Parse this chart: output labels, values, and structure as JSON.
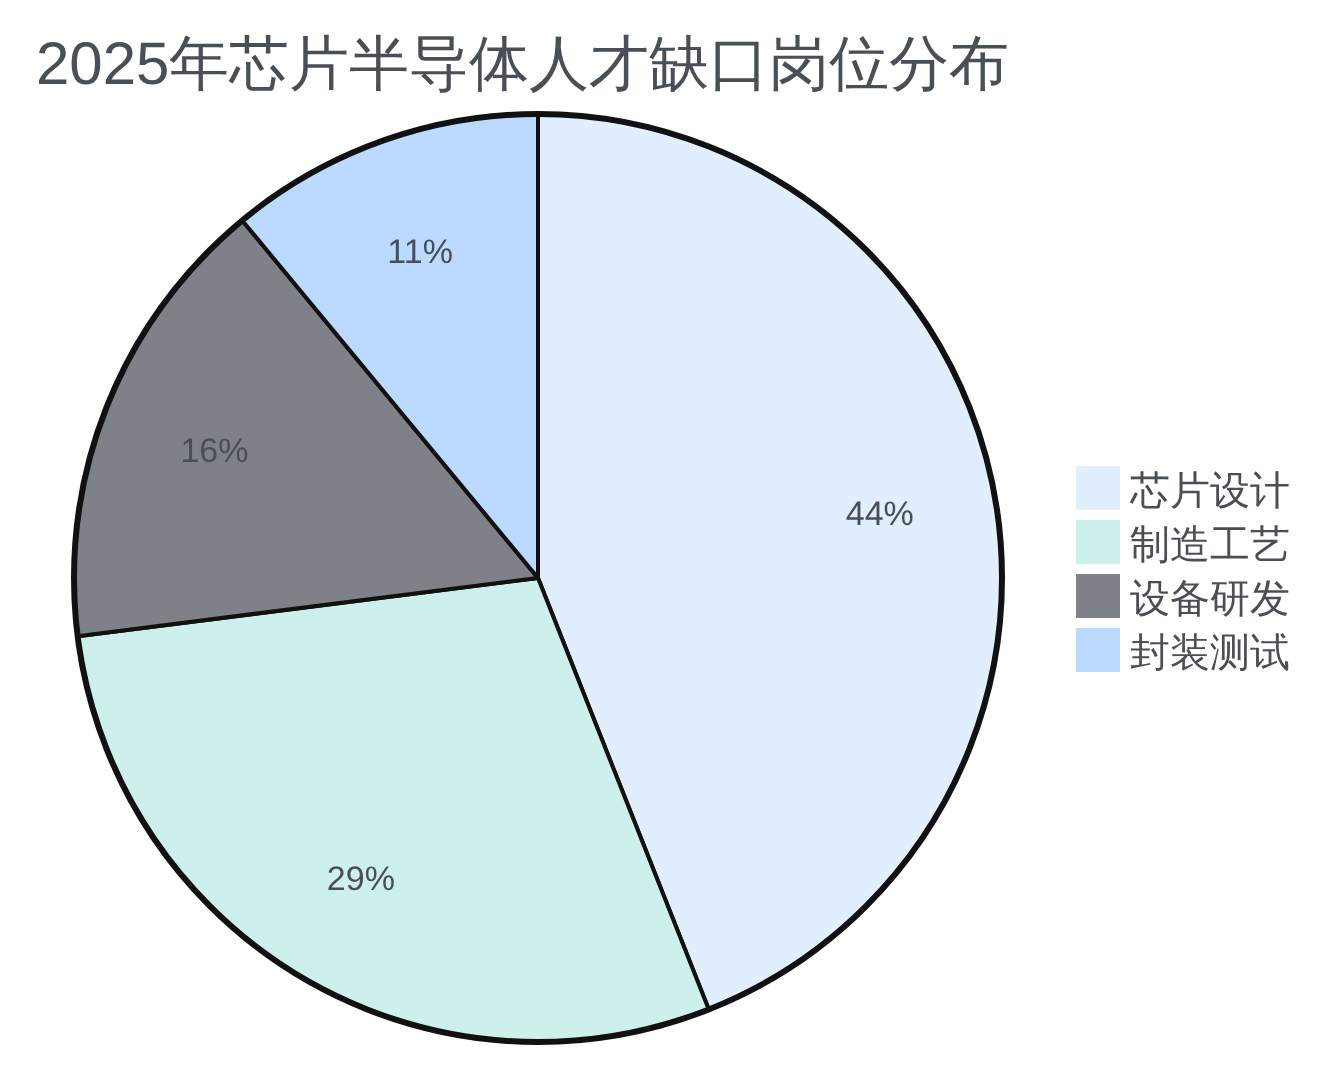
{
  "chart_data": {
    "type": "pie",
    "title": "2025年芯片半导体人才缺口岗位分布",
    "categories": [
      "芯片设计",
      "制造工艺",
      "设备研发",
      "封装测试"
    ],
    "values": [
      44,
      29,
      16,
      11
    ],
    "value_labels": [
      "44%",
      "29%",
      "16%",
      "11%"
    ],
    "colors": [
      "#e0eefe",
      "#cdf0ec",
      "#7e8288",
      "#bcdaff"
    ],
    "legend": "right"
  }
}
